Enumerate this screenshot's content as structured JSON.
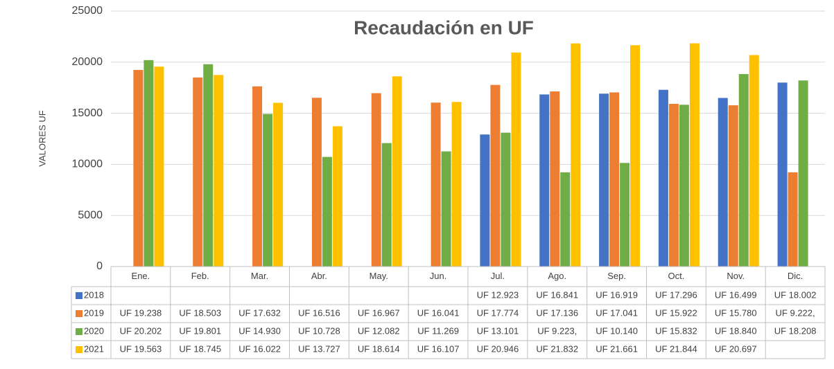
{
  "chart_data": {
    "type": "bar",
    "title": "Recaudación en UF",
    "y_label": "VALORES UF",
    "categories": [
      "Ene.",
      "Feb.",
      "Mar.",
      "Abr.",
      "May.",
      "Jun.",
      "Jul.",
      "Ago.",
      "Sep.",
      "Oct.",
      "Nov.",
      "Dic."
    ],
    "ylim": [
      0,
      25000
    ],
    "yticks": [
      0,
      5000,
      10000,
      15000,
      20000,
      25000
    ],
    "grid": true,
    "series": [
      {
        "name": "2018",
        "color": "#4472c4",
        "values": [
          null,
          null,
          null,
          null,
          null,
          null,
          12923,
          16841,
          16919,
          17296,
          16499,
          18002
        ],
        "value_labels": [
          null,
          null,
          null,
          null,
          null,
          null,
          "UF 12.923",
          "UF 16.841",
          "UF 16.919",
          "UF 17.296",
          "UF 16.499",
          "UF 18.002"
        ]
      },
      {
        "name": "2019",
        "color": "#ed7d31",
        "values": [
          19238,
          18503,
          17632,
          16516,
          16967,
          16041,
          17774,
          17136,
          17041,
          15922,
          15780,
          9222
        ],
        "value_labels": [
          "UF 19.238",
          "UF 18.503",
          "UF 17.632",
          "UF 16.516",
          "UF 16.967",
          "UF 16.041",
          "UF 17.774",
          "UF 17.136",
          "UF 17.041",
          "UF 15.922",
          "UF 15.780",
          "UF 9.222,"
        ]
      },
      {
        "name": "2020",
        "color": "#70ad47",
        "values": [
          20202,
          19801,
          14930,
          10728,
          12082,
          11269,
          13101,
          9223,
          10140,
          15832,
          18840,
          18208
        ],
        "value_labels": [
          "UF 20.202",
          "UF 19.801",
          "UF 14.930",
          "UF 10.728",
          "UF 12.082",
          "UF 11.269",
          "UF 13.101",
          "UF 9.223,",
          "UF 10.140",
          "UF 15.832",
          "UF 18.840",
          "UF 18.208"
        ]
      },
      {
        "name": "2021",
        "color": "#ffc000",
        "values": [
          19563,
          18745,
          16022,
          13727,
          18614,
          16107,
          20946,
          21832,
          21661,
          21844,
          20697,
          null
        ],
        "value_labels": [
          "UF 19.563",
          "UF 18.745",
          "UF 16.022",
          "UF 13.727",
          "UF 18.614",
          "UF 16.107",
          "UF 20.946",
          "UF 21.832",
          "UF 21.661",
          "UF 21.844",
          "UF 20.697",
          null
        ]
      }
    ]
  }
}
